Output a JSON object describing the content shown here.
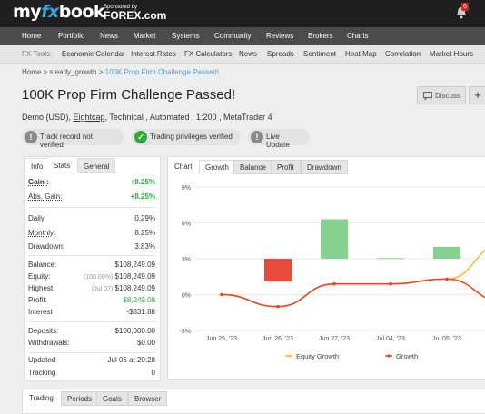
{
  "header": {
    "logo_prefix": "my",
    "logo_fx": "fx",
    "logo_suffix": "book",
    "sponsor_label": "Sponsored by",
    "sponsor_name": "FOREX.com",
    "notification_count": "6"
  },
  "main_nav": [
    "Home",
    "Portfolio",
    "News",
    "Market",
    "Systems",
    "Community",
    "Reviews",
    "Brokers",
    "Charts"
  ],
  "tools_nav": {
    "label": "FX Tools:",
    "items": [
      "Economic Calendar",
      "Interest Rates",
      "FX Calculators",
      "News",
      "Spreads",
      "Sentiment",
      "Heat Map",
      "Correlation",
      "Market Hours"
    ]
  },
  "breadcrumb": {
    "home": "Home",
    "sep1": ">",
    "user": "steady_growth",
    "sep2": ">",
    "current": "100K Prop Firm Challenge Passed!"
  },
  "account": {
    "title": "100K Prop Firm Challenge Passed!",
    "sub_prefix": "Demo (USD),",
    "broker": "Eightcap",
    "sub_suffix": ", Technical , Automated , 1:200 , MetaTrader 4",
    "discuss_label": "Discuss",
    "plus_label": "+"
  },
  "badges": [
    {
      "text": "Track record not verified",
      "icon": "!",
      "color": "#8a8a8a"
    },
    {
      "text": "Trading privileges verified",
      "icon": "✓",
      "color": "#2fa83a"
    },
    {
      "text": "Live Update",
      "icon": "!",
      "color": "#8a8a8a"
    }
  ],
  "stats_tabs": [
    "Info",
    "Stats",
    "General"
  ],
  "stats": {
    "gain_label": "Gain :",
    "gain": "+8.25%",
    "abs_gain_label": "Abs. Gain:",
    "abs_gain": "+8.25%",
    "daily_label": "Daily",
    "daily": "0.29%",
    "monthly_label": "Monthly:",
    "monthly": "8.25%",
    "drawdown_label": "Drawdown:",
    "drawdown": "3.83%",
    "balance_label": "Balance:",
    "balance": "$108,249.09",
    "equity_label": "Equity:",
    "equity_pct": "(100.00%)",
    "equity": "$108,249.09",
    "highest_label": "Highest:",
    "highest_date": "(Jul 07)",
    "highest": "$108,249.09",
    "profit_label": "Profit:",
    "profit": "$8,249.09",
    "interest_label": "Interest",
    "interest": "-$331.88",
    "deposits_label": "Deposits:",
    "deposits": "$100,000.00",
    "withdrawals_label": "Withdrawals:",
    "withdrawals": "$0.00",
    "updated_label": "Updated",
    "updated": "Jul 06 at 20:28",
    "tracking_label": "Tracking",
    "tracking": "0"
  },
  "chart_tabs": [
    "Chart",
    "Growth",
    "Balance",
    "Profit",
    "Drawdown"
  ],
  "chart_data": {
    "type": "line",
    "x": [
      "Jun 25, '23",
      "Jun 26, '23",
      "Jun 27, '23",
      "Jul 04, '23",
      "Jul 05, '23",
      "Jul 06, '23"
    ],
    "yticks": [
      "9%",
      "6%",
      "3%",
      "0%",
      "-3%"
    ],
    "ylim": [
      -3,
      9
    ],
    "series": [
      {
        "name": "Equity Growth",
        "color": "#f2c230",
        "values": [
          0,
          -1.0,
          0.9,
          0.9,
          1.3,
          4.3
        ]
      },
      {
        "name": "Growth",
        "color": "#e8472b",
        "values": [
          0,
          -1.0,
          0.9,
          0.9,
          1.3,
          -0.6
        ]
      }
    ],
    "bars": [
      {
        "x": "Jun 26, '23",
        "from": 3.0,
        "to": 1.1,
        "color": "#e84a3b"
      },
      {
        "x": "Jun 27, '23",
        "from": 3.0,
        "to": 6.3,
        "color": "#86d18f"
      },
      {
        "x": "Jul 04, '23",
        "from": 3.0,
        "to": 3.05,
        "color": "#86d18f"
      },
      {
        "x": "Jul 05, '23",
        "from": 3.0,
        "to": 4.0,
        "color": "#86d18f"
      }
    ]
  },
  "bottom_tabs": [
    "Trading",
    "Periods",
    "Goals",
    "Browser"
  ]
}
